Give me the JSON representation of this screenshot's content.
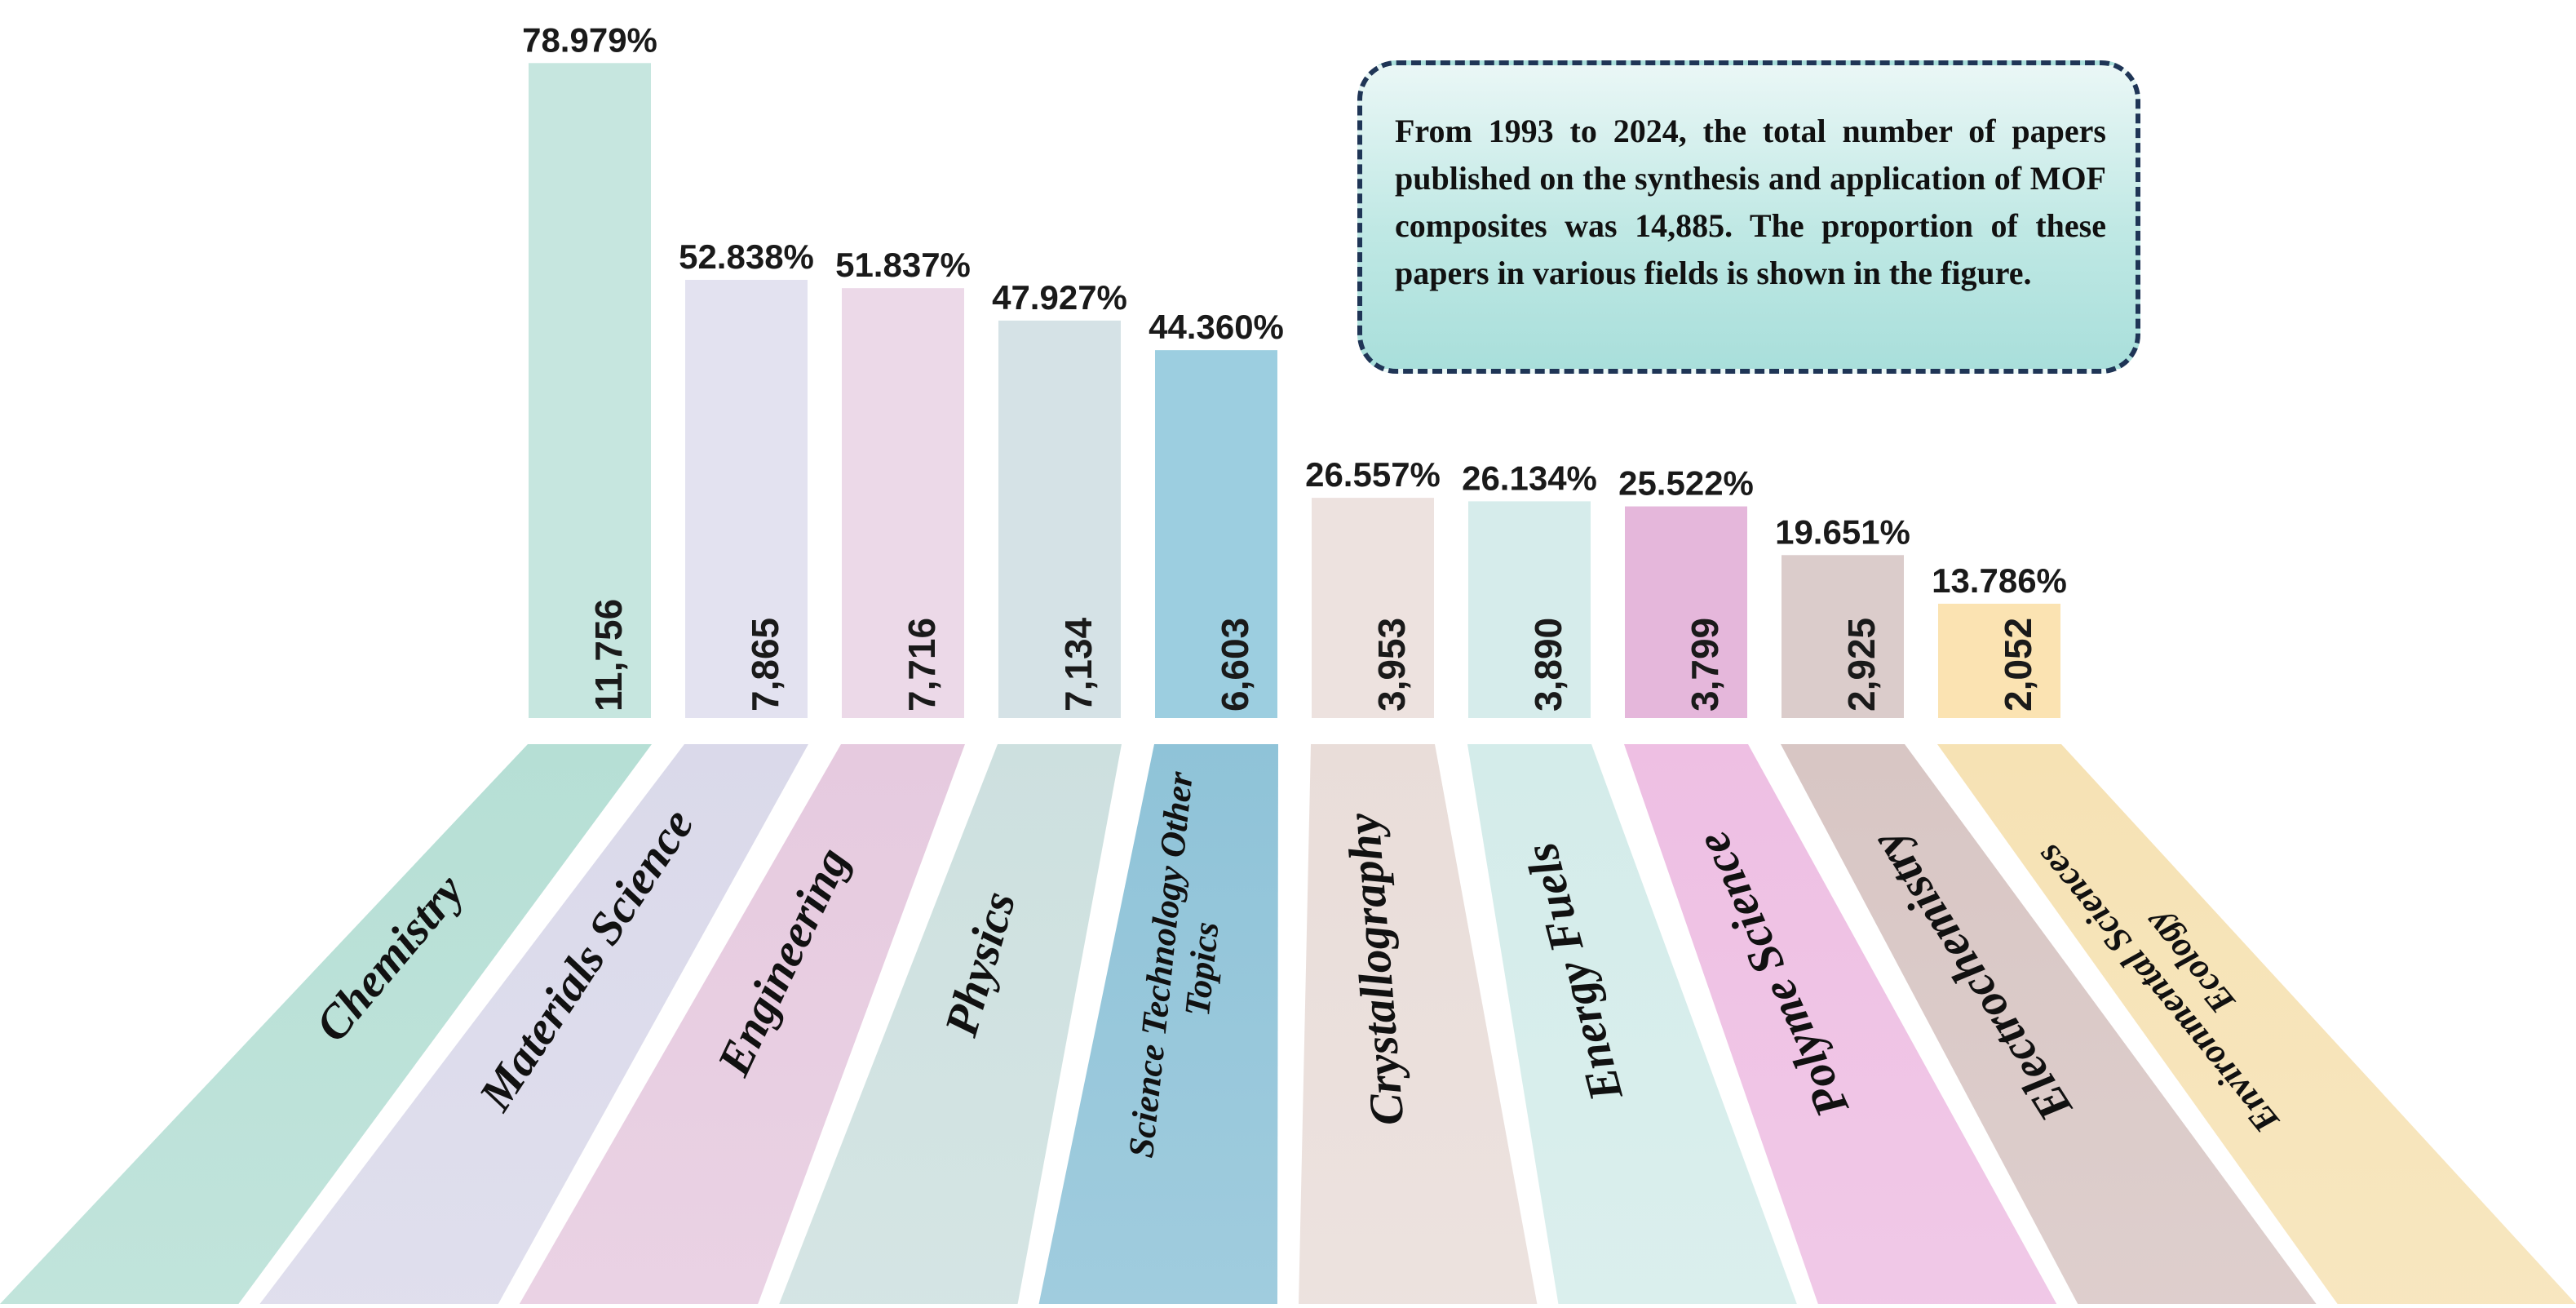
{
  "note": {
    "text": "From 1993 to 2024, the total number of papers published on the synthesis and application of MOF composites was 14,885. The proportion of these papers in various fields is shown in the figure."
  },
  "chart_data": {
    "type": "bar",
    "title": "",
    "xlabel": "",
    "ylabel": "",
    "ylim": [
      0,
      80
    ],
    "grid": false,
    "legend": "none",
    "categories": [
      {
        "label": "Chemistry",
        "lines": [
          "Chemistry"
        ]
      },
      {
        "label": "Materials Science",
        "lines": [
          "Materials Science"
        ]
      },
      {
        "label": "Engineering",
        "lines": [
          "Engineering"
        ]
      },
      {
        "label": "Physics",
        "lines": [
          "Physics"
        ]
      },
      {
        "label": "Science Technology Other Topics",
        "lines": [
          "Science Technology Other",
          "Topics"
        ]
      },
      {
        "label": "Crystallography",
        "lines": [
          "Crystallography"
        ]
      },
      {
        "label": "Energy Fuels",
        "lines": [
          "Energy Fuels"
        ]
      },
      {
        "label": "Polyme Science",
        "lines": [
          "Polyme Science"
        ]
      },
      {
        "label": "Electrochemistry",
        "lines": [
          "Electrochemistry"
        ]
      },
      {
        "label": "Environmental Sciences Ecology",
        "lines": [
          "Environmental Sciences",
          "Ecology"
        ]
      }
    ],
    "percent_labels": [
      "78.979%",
      "52.838%",
      "51.837%",
      "47.927%",
      "44.360%",
      "26.557%",
      "26.134%",
      "25.522%",
      "19.651%",
      "13.786%"
    ],
    "percent_values": [
      78.979,
      52.838,
      51.837,
      47.927,
      44.36,
      26.557,
      26.134,
      25.522,
      19.651,
      13.786
    ],
    "count_labels": [
      "11,756",
      "7,865",
      "7,716",
      "7,134",
      "6,603",
      "3,953",
      "3,890",
      "3,799",
      "2,925",
      "2,052"
    ],
    "count_values": [
      11756,
      7865,
      7716,
      7134,
      6603,
      3953,
      3890,
      3799,
      2925,
      2052
    ],
    "bar_colors": [
      "#c6e6df",
      "#e3e2f0",
      "#ecd9e8",
      "#d5e2e6",
      "#9ccee0",
      "#ede2df",
      "#d6eceb",
      "#e5b7db",
      "#dbcccb",
      "#fbe3b2"
    ],
    "ribbon_colors": [
      "#b6dfd5",
      "#dad9ea",
      "#e6cadf",
      "#cde0df",
      "#8fc3d8",
      "#e9ddd9",
      "#d4ecea",
      "#eebfe3",
      "#d8c6c4",
      "#f6e2b4"
    ]
  }
}
